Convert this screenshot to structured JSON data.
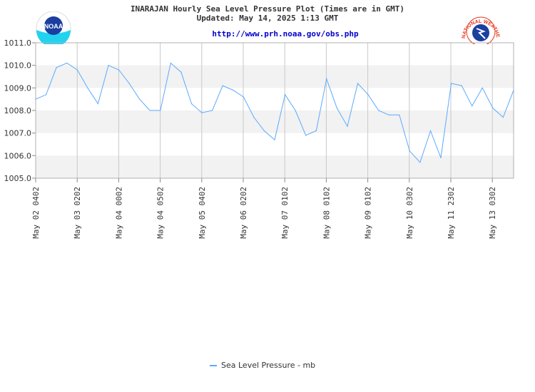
{
  "header": {
    "title": "INARAJAN Hourly Sea Level Pressure Plot (Times are in GMT)",
    "updated": "Updated: May 14, 2025 1:13 GMT",
    "url": "http://www.prh.noaa.gov/obs.php"
  },
  "logos": {
    "left": "NOAA",
    "right": "NATIONAL WEATHER SERVICE"
  },
  "colors": {
    "line": "#5aaaff",
    "band": "#f2f2f2",
    "grid": "#c8c8c8",
    "noaa_blue": "#1a3fa0",
    "noaa_cyan": "#22d3f0",
    "nws_red": "#e8331c"
  },
  "chart_data": {
    "type": "line",
    "ylim": [
      1005.0,
      1011.0
    ],
    "yticks": [
      "1005.0",
      "1006.0",
      "1007.0",
      "1008.0",
      "1009.0",
      "1010.0",
      "1011.0"
    ],
    "xticks": [
      "May 02 0402",
      "May 03 0202",
      "May 04 0002",
      "May 04 0502",
      "May 05 0402",
      "May 06 0202",
      "May 07 0102",
      "May 08 0102",
      "May 09 0102",
      "May 10 0302",
      "May 11 2302",
      "May 13 0302"
    ],
    "grid": true,
    "legend_position": "bottom",
    "series": [
      {
        "name": "Sea Level Pressure - mb",
        "values": [
          1008.5,
          1008.7,
          1009.9,
          1010.1,
          1009.8,
          1009.0,
          1008.3,
          1010.0,
          1009.8,
          1009.2,
          1008.5,
          1008.0,
          1008.0,
          1010.1,
          1009.7,
          1008.3,
          1007.9,
          1008.0,
          1009.1,
          1008.9,
          1008.6,
          1007.7,
          1007.1,
          1006.7,
          1008.7,
          1008.0,
          1006.9,
          1007.1,
          1009.4,
          1008.1,
          1007.3,
          1009.2,
          1008.7,
          1008.0,
          1007.8,
          1007.8,
          1006.2,
          1005.7,
          1007.1,
          1005.9,
          1009.2,
          1009.1,
          1008.2,
          1009.0,
          1008.1,
          1007.7,
          1008.9
        ]
      }
    ]
  }
}
